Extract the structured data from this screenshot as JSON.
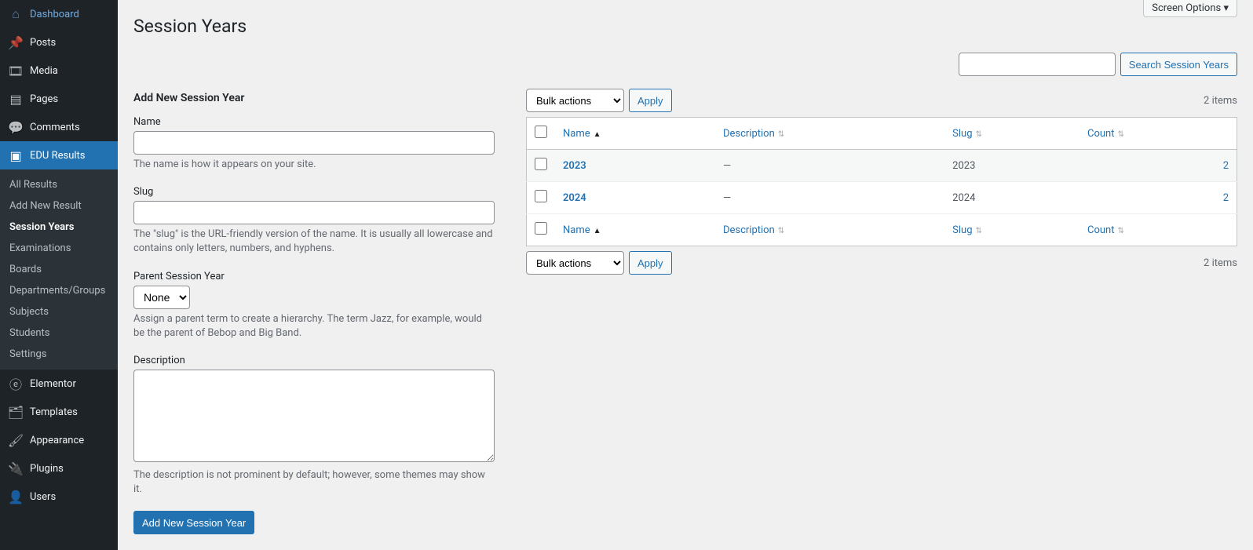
{
  "sidebar": {
    "items": [
      {
        "icon": "dashboard",
        "label": "Dashboard"
      },
      {
        "icon": "pin",
        "label": "Posts"
      },
      {
        "icon": "media",
        "label": "Media"
      },
      {
        "icon": "page",
        "label": "Pages"
      },
      {
        "icon": "comment",
        "label": "Comments"
      },
      {
        "icon": "results",
        "label": "EDU Results",
        "active": true
      },
      {
        "icon": "elementor",
        "label": "Elementor"
      },
      {
        "icon": "templates",
        "label": "Templates"
      },
      {
        "icon": "appearance",
        "label": "Appearance"
      },
      {
        "icon": "plugin",
        "label": "Plugins"
      },
      {
        "icon": "user",
        "label": "Users"
      }
    ],
    "submenu": [
      {
        "label": "All Results"
      },
      {
        "label": "Add New Result"
      },
      {
        "label": "Session Years",
        "current": true
      },
      {
        "label": "Examinations"
      },
      {
        "label": "Boards"
      },
      {
        "label": "Departments/Groups"
      },
      {
        "label": "Subjects"
      },
      {
        "label": "Students"
      },
      {
        "label": "Settings"
      }
    ]
  },
  "screen_options_label": "Screen Options",
  "page_title": "Session Years",
  "search": {
    "button": "Search Session Years"
  },
  "form": {
    "title": "Add New Session Year",
    "name_label": "Name",
    "name_help": "The name is how it appears on your site.",
    "slug_label": "Slug",
    "slug_help": "The \"slug\" is the URL-friendly version of the name. It is usually all lowercase and contains only letters, numbers, and hyphens.",
    "parent_label": "Parent Session Year",
    "parent_selected": "None",
    "parent_help": "Assign a parent term to create a hierarchy. The term Jazz, for example, would be the parent of Bebop and Big Band.",
    "desc_label": "Description",
    "desc_help": "The description is not prominent by default; however, some themes may show it.",
    "submit": "Add New Session Year"
  },
  "table": {
    "bulk_label": "Bulk actions",
    "apply_label": "Apply",
    "item_count": "2 items",
    "cols": {
      "name": "Name",
      "description": "Description",
      "slug": "Slug",
      "count": "Count"
    },
    "rows": [
      {
        "name": "2023",
        "description": "—",
        "slug": "2023",
        "count": "2"
      },
      {
        "name": "2024",
        "description": "—",
        "slug": "2024",
        "count": "2"
      }
    ]
  },
  "colors": {
    "accent": "#2271b1",
    "sidebar_bg": "#1d2327",
    "page_bg": "#f0f0f1"
  }
}
